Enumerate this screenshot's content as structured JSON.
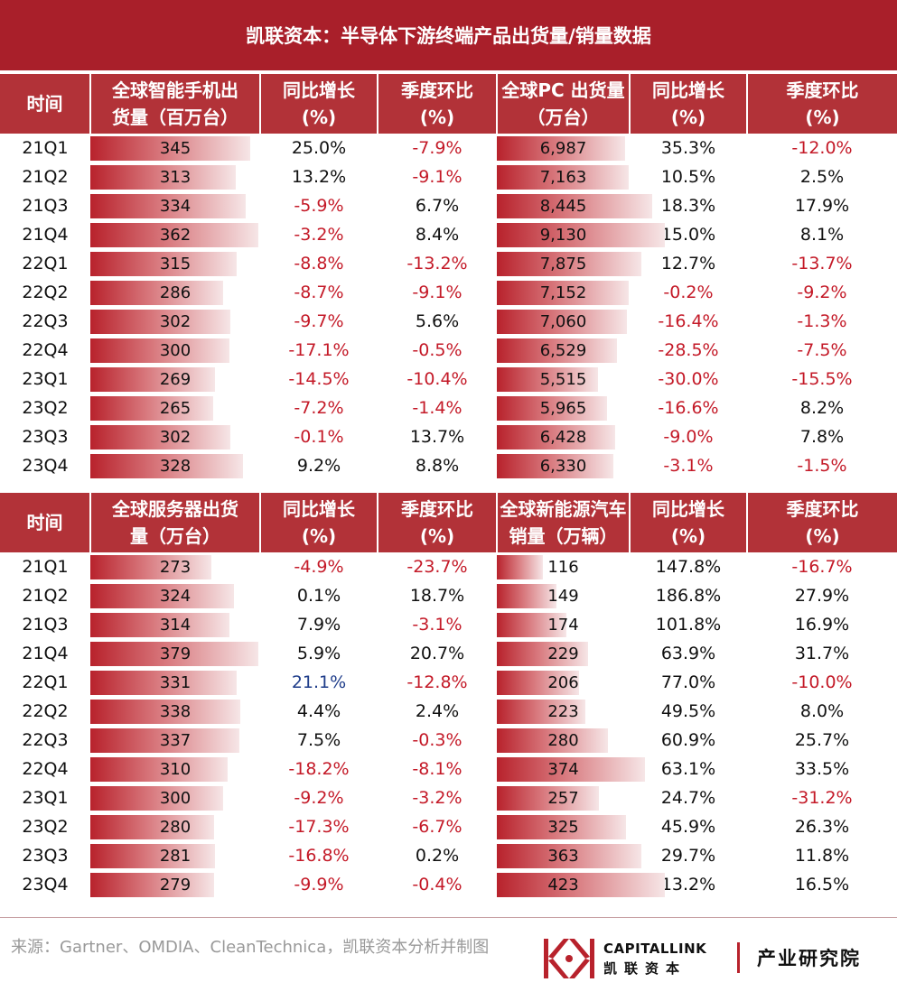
{
  "title": "凯联资本：半导体下游终端产品出货量/销量数据",
  "periods": [
    "21Q1",
    "21Q2",
    "21Q3",
    "21Q4",
    "22Q1",
    "22Q2",
    "22Q3",
    "22Q4",
    "23Q1",
    "23Q2",
    "23Q3",
    "23Q4"
  ],
  "chart_data": [
    {
      "type": "table",
      "blocks": [
        {
          "header_time": "时间",
          "groups": [
            {
              "metric": "全球智能手机出货量（百万台）",
              "metric_lines": [
                "全球智能手机出",
                "货量（百万台）"
              ],
              "yoy_header": [
                "同比增长",
                "(%)"
              ],
              "qoq_header": [
                "季度环比",
                "(%)"
              ],
              "values": [
                345,
                313,
                334,
                362,
                315,
                286,
                302,
                300,
                269,
                265,
                302,
                328
              ],
              "values_text": [
                "345",
                "313",
                "334",
                "362",
                "315",
                "286",
                "302",
                "300",
                "269",
                "265",
                "302",
                "328"
              ],
              "bar_max": 362,
              "yoy": [
                "25.0%",
                "13.2%",
                "-5.9%",
                "-3.2%",
                "-8.8%",
                "-8.7%",
                "-9.7%",
                "-17.1%",
                "-14.5%",
                "-7.2%",
                "-0.1%",
                "9.2%"
              ],
              "qoq": [
                "-7.9%",
                "-9.1%",
                "6.7%",
                "8.4%",
                "-13.2%",
                "-9.1%",
                "5.6%",
                "-0.5%",
                "-10.4%",
                "-1.4%",
                "13.7%",
                "8.8%"
              ]
            },
            {
              "metric": "全球PC 出货量（万台）",
              "metric_lines": [
                "全球PC 出货量",
                "（万台）"
              ],
              "yoy_header": [
                "同比增长",
                "(%)"
              ],
              "qoq_header": [
                "季度环比",
                "(%)"
              ],
              "values": [
                6987,
                7163,
                8445,
                9130,
                7875,
                7152,
                7060,
                6529,
                5515,
                5965,
                6428,
                6330
              ],
              "values_text": [
                "6,987",
                "7,163",
                "8,445",
                "9,130",
                "7,875",
                "7,152",
                "7,060",
                "6,529",
                "5,515",
                "5,965",
                "6,428",
                "6,330"
              ],
              "bar_max": 9130,
              "yoy": [
                "35.3%",
                "10.5%",
                "18.3%",
                "15.0%",
                "12.7%",
                "-0.2%",
                "-16.4%",
                "-28.5%",
                "-30.0%",
                "-16.6%",
                "-9.0%",
                "-3.1%"
              ],
              "qoq": [
                "-12.0%",
                "2.5%",
                "17.9%",
                "8.1%",
                "-13.7%",
                "-9.2%",
                "-1.3%",
                "-7.5%",
                "-15.5%",
                "8.2%",
                "7.8%",
                "-1.5%"
              ]
            }
          ]
        },
        {
          "header_time": "时间",
          "groups": [
            {
              "metric": "全球服务器出货量（万台）",
              "metric_lines": [
                "全球服务器出货",
                "量（万台）"
              ],
              "yoy_header": [
                "同比增长",
                "(%)"
              ],
              "qoq_header": [
                "季度环比",
                "(%)"
              ],
              "values": [
                273,
                324,
                314,
                379,
                331,
                338,
                337,
                310,
                300,
                280,
                281,
                279
              ],
              "values_text": [
                "273",
                "324",
                "314",
                "379",
                "331",
                "338",
                "337",
                "310",
                "300",
                "280",
                "281",
                "279"
              ],
              "bar_max": 379,
              "yoy": [
                "-4.9%",
                "0.1%",
                "7.9%",
                "5.9%",
                "21.1%",
                "4.4%",
                "7.5%",
                "-18.2%",
                "-9.2%",
                "-17.3%",
                "-16.8%",
                "-9.9%"
              ],
              "qoq": [
                "-23.7%",
                "18.7%",
                "-3.1%",
                "20.7%",
                "-12.8%",
                "2.4%",
                "-0.3%",
                "-8.1%",
                "-3.2%",
                "-6.7%",
                "0.2%",
                "-0.4%"
              ]
            },
            {
              "metric": "全球新能源汽车销量（万辆）",
              "metric_lines": [
                "全球新能源汽车",
                "销量（万辆）"
              ],
              "yoy_header": [
                "同比增长",
                "(%)"
              ],
              "qoq_header": [
                "季度环比",
                "(%)"
              ],
              "values": [
                116,
                149,
                174,
                229,
                206,
                223,
                280,
                374,
                257,
                325,
                363,
                423
              ],
              "values_text": [
                "116",
                "149",
                "174",
                "229",
                "206",
                "223",
                "280",
                "374",
                "257",
                "325",
                "363",
                "423"
              ],
              "bar_max": 423,
              "yoy": [
                "147.8%",
                "186.8%",
                "101.8%",
                "63.9%",
                "77.0%",
                "49.5%",
                "60.9%",
                "63.1%",
                "24.7%",
                "45.9%",
                "29.7%",
                "13.2%"
              ],
              "qoq": [
                "-16.7%",
                "27.9%",
                "16.9%",
                "31.7%",
                "-10.0%",
                "8.0%",
                "25.7%",
                "33.5%",
                "-31.2%",
                "26.3%",
                "11.8%",
                "16.5%"
              ]
            }
          ]
        }
      ]
    }
  ],
  "colors": {
    "header": "#b23238",
    "banner": "#a91f2a",
    "negative": "#c41a28",
    "bar": "#b8222c",
    "highlight": "#1f3d8a"
  },
  "source": "来源：Gartner、OMDIA、CleanTechnica，凯联资本分析并制图",
  "logo": {
    "en": "CAPITALLINK",
    "cn": "凯联资本",
    "institute": "产业研究院"
  }
}
